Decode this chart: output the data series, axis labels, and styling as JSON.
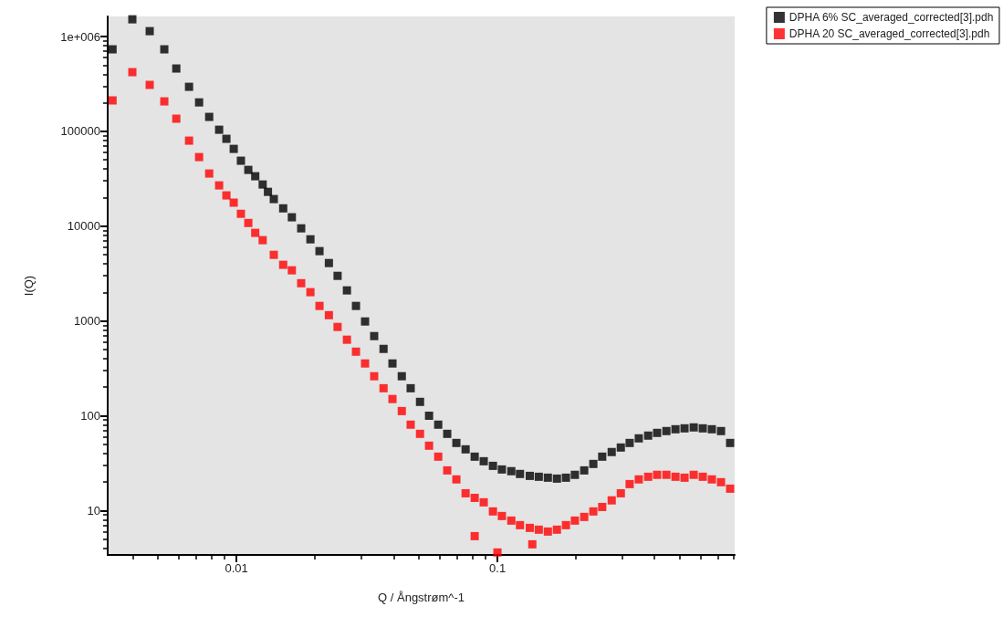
{
  "chart_data": {
    "type": "scatter",
    "xlabel": "Q / Ångstrøm^-1",
    "ylabel": "I(Q)",
    "log": "xy",
    "marker": "square",
    "grid": false,
    "legend": "top right",
    "xlim": [
      0.00321,
      0.811
    ],
    "xticks": [
      0.01,
      0.1
    ],
    "ylim": [
      3.4,
      1630000
    ],
    "yticks": [
      10,
      100,
      1000,
      10000,
      100000,
      {
        "value": 1000000,
        "label": "1e+006"
      }
    ],
    "series": [
      {
        "name": "DPHA 6% SC_averaged_corrected[3].pdh",
        "color": "#000000",
        "x": [
          0.00335,
          0.00399,
          0.00465,
          0.00529,
          0.00588,
          0.00658,
          0.00719,
          0.00786,
          0.00858,
          0.00915,
          0.00976,
          0.0104,
          0.0111,
          0.0118,
          0.0126,
          0.0132,
          0.0139,
          0.0151,
          0.0163,
          0.0177,
          0.0192,
          0.0208,
          0.0226,
          0.0244,
          0.0265,
          0.0287,
          0.0311,
          0.0337,
          0.0366,
          0.0396,
          0.043,
          0.0465,
          0.0505,
          0.0547,
          0.0593,
          0.0642,
          0.0696,
          0.0755,
          0.0818,
          0.0886,
          0.0961,
          0.104,
          0.113,
          0.122,
          0.133,
          0.144,
          0.156,
          0.169,
          0.183,
          0.198,
          0.215,
          0.233,
          0.252,
          0.274,
          0.297,
          0.321,
          0.348,
          0.378,
          0.409,
          0.444,
          0.481,
          0.521,
          0.565,
          0.612,
          0.663,
          0.719,
          0.779
        ],
        "values": [
          733000,
          1520000,
          1140000,
          733000,
          460000,
          295000,
          202000,
          142000,
          104000,
          83400,
          65300,
          49000,
          39200,
          33600,
          27500,
          23000,
          19300,
          15400,
          12400,
          9480,
          7260,
          5450,
          4080,
          2990,
          2100,
          1440,
          987,
          692,
          507,
          356,
          261,
          195,
          140,
          100,
          80.5,
          64.4,
          51.6,
          44.2,
          37,
          33.1,
          29.6,
          27.1,
          26,
          24.3,
          23.2,
          22.7,
          22.2,
          21.7,
          22.2,
          23.8,
          26.5,
          31,
          37,
          41.4,
          46.2,
          51.6,
          57.7,
          61.7,
          65.9,
          68.9,
          72,
          73.6,
          75.3,
          73.6,
          72,
          68.9,
          51.6
        ]
      },
      {
        "name": "DPHA 20 SC_averaged_corrected[3].pdh",
        "color": "#ff0000",
        "x": [
          0.00335,
          0.00399,
          0.00465,
          0.00529,
          0.00588,
          0.00658,
          0.00719,
          0.00786,
          0.00858,
          0.00915,
          0.00976,
          0.0104,
          0.0111,
          0.0118,
          0.0126,
          0.0139,
          0.0151,
          0.0163,
          0.0177,
          0.0192,
          0.0208,
          0.0226,
          0.0244,
          0.0265,
          0.0287,
          0.0311,
          0.0337,
          0.0366,
          0.0396,
          0.043,
          0.0465,
          0.0505,
          0.0547,
          0.0593,
          0.0642,
          0.0696,
          0.0755,
          0.0818,
          0.0886,
          0.0961,
          0.104,
          0.113,
          0.122,
          0.133,
          0.144,
          0.156,
          0.169,
          0.183,
          0.198,
          0.215,
          0.233,
          0.252,
          0.274,
          0.297,
          0.321,
          0.348,
          0.378,
          0.409,
          0.444,
          0.481,
          0.521,
          0.565,
          0.612,
          0.663,
          0.719,
          0.779,
          0.0818,
          0.1,
          0.136
        ],
        "values": [
          212000,
          421000,
          309000,
          207000,
          136000,
          79800,
          53500,
          35900,
          26900,
          21100,
          17700,
          13500,
          10800,
          8490,
          7110,
          4980,
          3910,
          3420,
          2500,
          2010,
          1440,
          1150,
          864,
          634,
          474,
          356,
          261,
          195,
          150,
          112,
          80.5,
          64.4,
          48.3,
          37,
          26.5,
          21.3,
          15.2,
          13.6,
          12.2,
          9.78,
          8.75,
          7.83,
          7.01,
          6.56,
          6.28,
          6,
          6.28,
          7.01,
          7.83,
          8.56,
          9.78,
          10.9,
          12.8,
          15.2,
          19,
          21.3,
          22.7,
          23.8,
          23.8,
          22.7,
          22.2,
          23.8,
          22.7,
          21.3,
          19.9,
          17,
          5.37,
          3.61,
          4.4
        ]
      }
    ]
  }
}
